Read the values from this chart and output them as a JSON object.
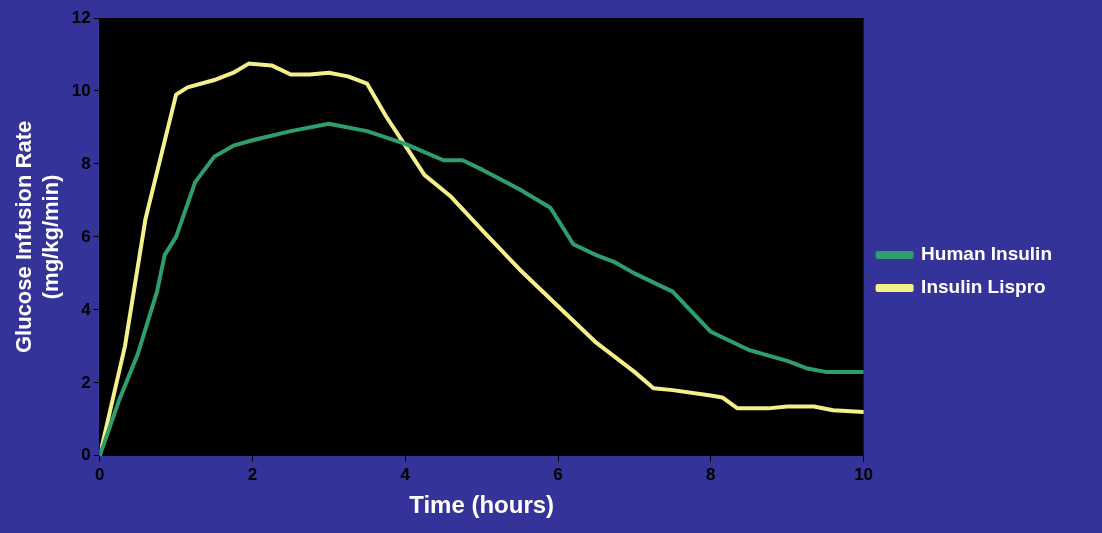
{
  "chart_data": {
    "type": "line",
    "xlabel": "Time (hours)",
    "ylabel": "Glucose Infusion Rate (mg/kg/min)",
    "xlim": [
      0,
      10
    ],
    "xticks": [
      0,
      2,
      4,
      6,
      8,
      10
    ],
    "ylim": [
      0,
      12
    ],
    "yticks": [
      0,
      2,
      4,
      6,
      8,
      10,
      12
    ],
    "grid": false,
    "legend": "right",
    "marker": "none",
    "line_style": "solid",
    "series": [
      {
        "name": "Human Insulin",
        "color": "#2e9e6e",
        "x": [
          0,
          0.25,
          0.5,
          0.75,
          0.85,
          1,
          1.25,
          1.5,
          1.75,
          2,
          2.5,
          3,
          3.5,
          4,
          4.5,
          4.75,
          5,
          5.5,
          5.9,
          6.2,
          6.5,
          6.75,
          7,
          7.5,
          8,
          8.5,
          9,
          9.25,
          9.5,
          10
        ],
        "values": [
          0,
          1.5,
          2.8,
          4.5,
          5.5,
          6,
          7.5,
          8.2,
          8.5,
          8.65,
          8.9,
          9.1,
          8.9,
          8.55,
          8.1,
          8.1,
          7.85,
          7.3,
          6.8,
          5.8,
          5.5,
          5.3,
          5,
          4.5,
          3.4,
          2.9,
          2.6,
          2.4,
          2.3,
          2.3
        ]
      },
      {
        "name": "Insulin Lispro",
        "color": "#f5f08a",
        "x": [
          0,
          0.33,
          0.6,
          1,
          1.15,
          1.5,
          1.75,
          1.95,
          2.25,
          2.5,
          2.75,
          3,
          3.25,
          3.5,
          3.75,
          4,
          4.25,
          4.6,
          5,
          5.5,
          6,
          6.5,
          7,
          7.25,
          7.5,
          8,
          8.15,
          8.35,
          8.75,
          9,
          9.35,
          9.6,
          10
        ],
        "values": [
          0,
          3,
          6.5,
          9.9,
          10.1,
          10.3,
          10.5,
          10.75,
          10.7,
          10.45,
          10.45,
          10.5,
          10.4,
          10.2,
          9.3,
          8.5,
          7.7,
          7.1,
          6.2,
          5.1,
          4.1,
          3.1,
          2.3,
          1.85,
          1.8,
          1.65,
          1.6,
          1.3,
          1.3,
          1.35,
          1.35,
          1.25,
          1.2
        ]
      }
    ]
  }
}
